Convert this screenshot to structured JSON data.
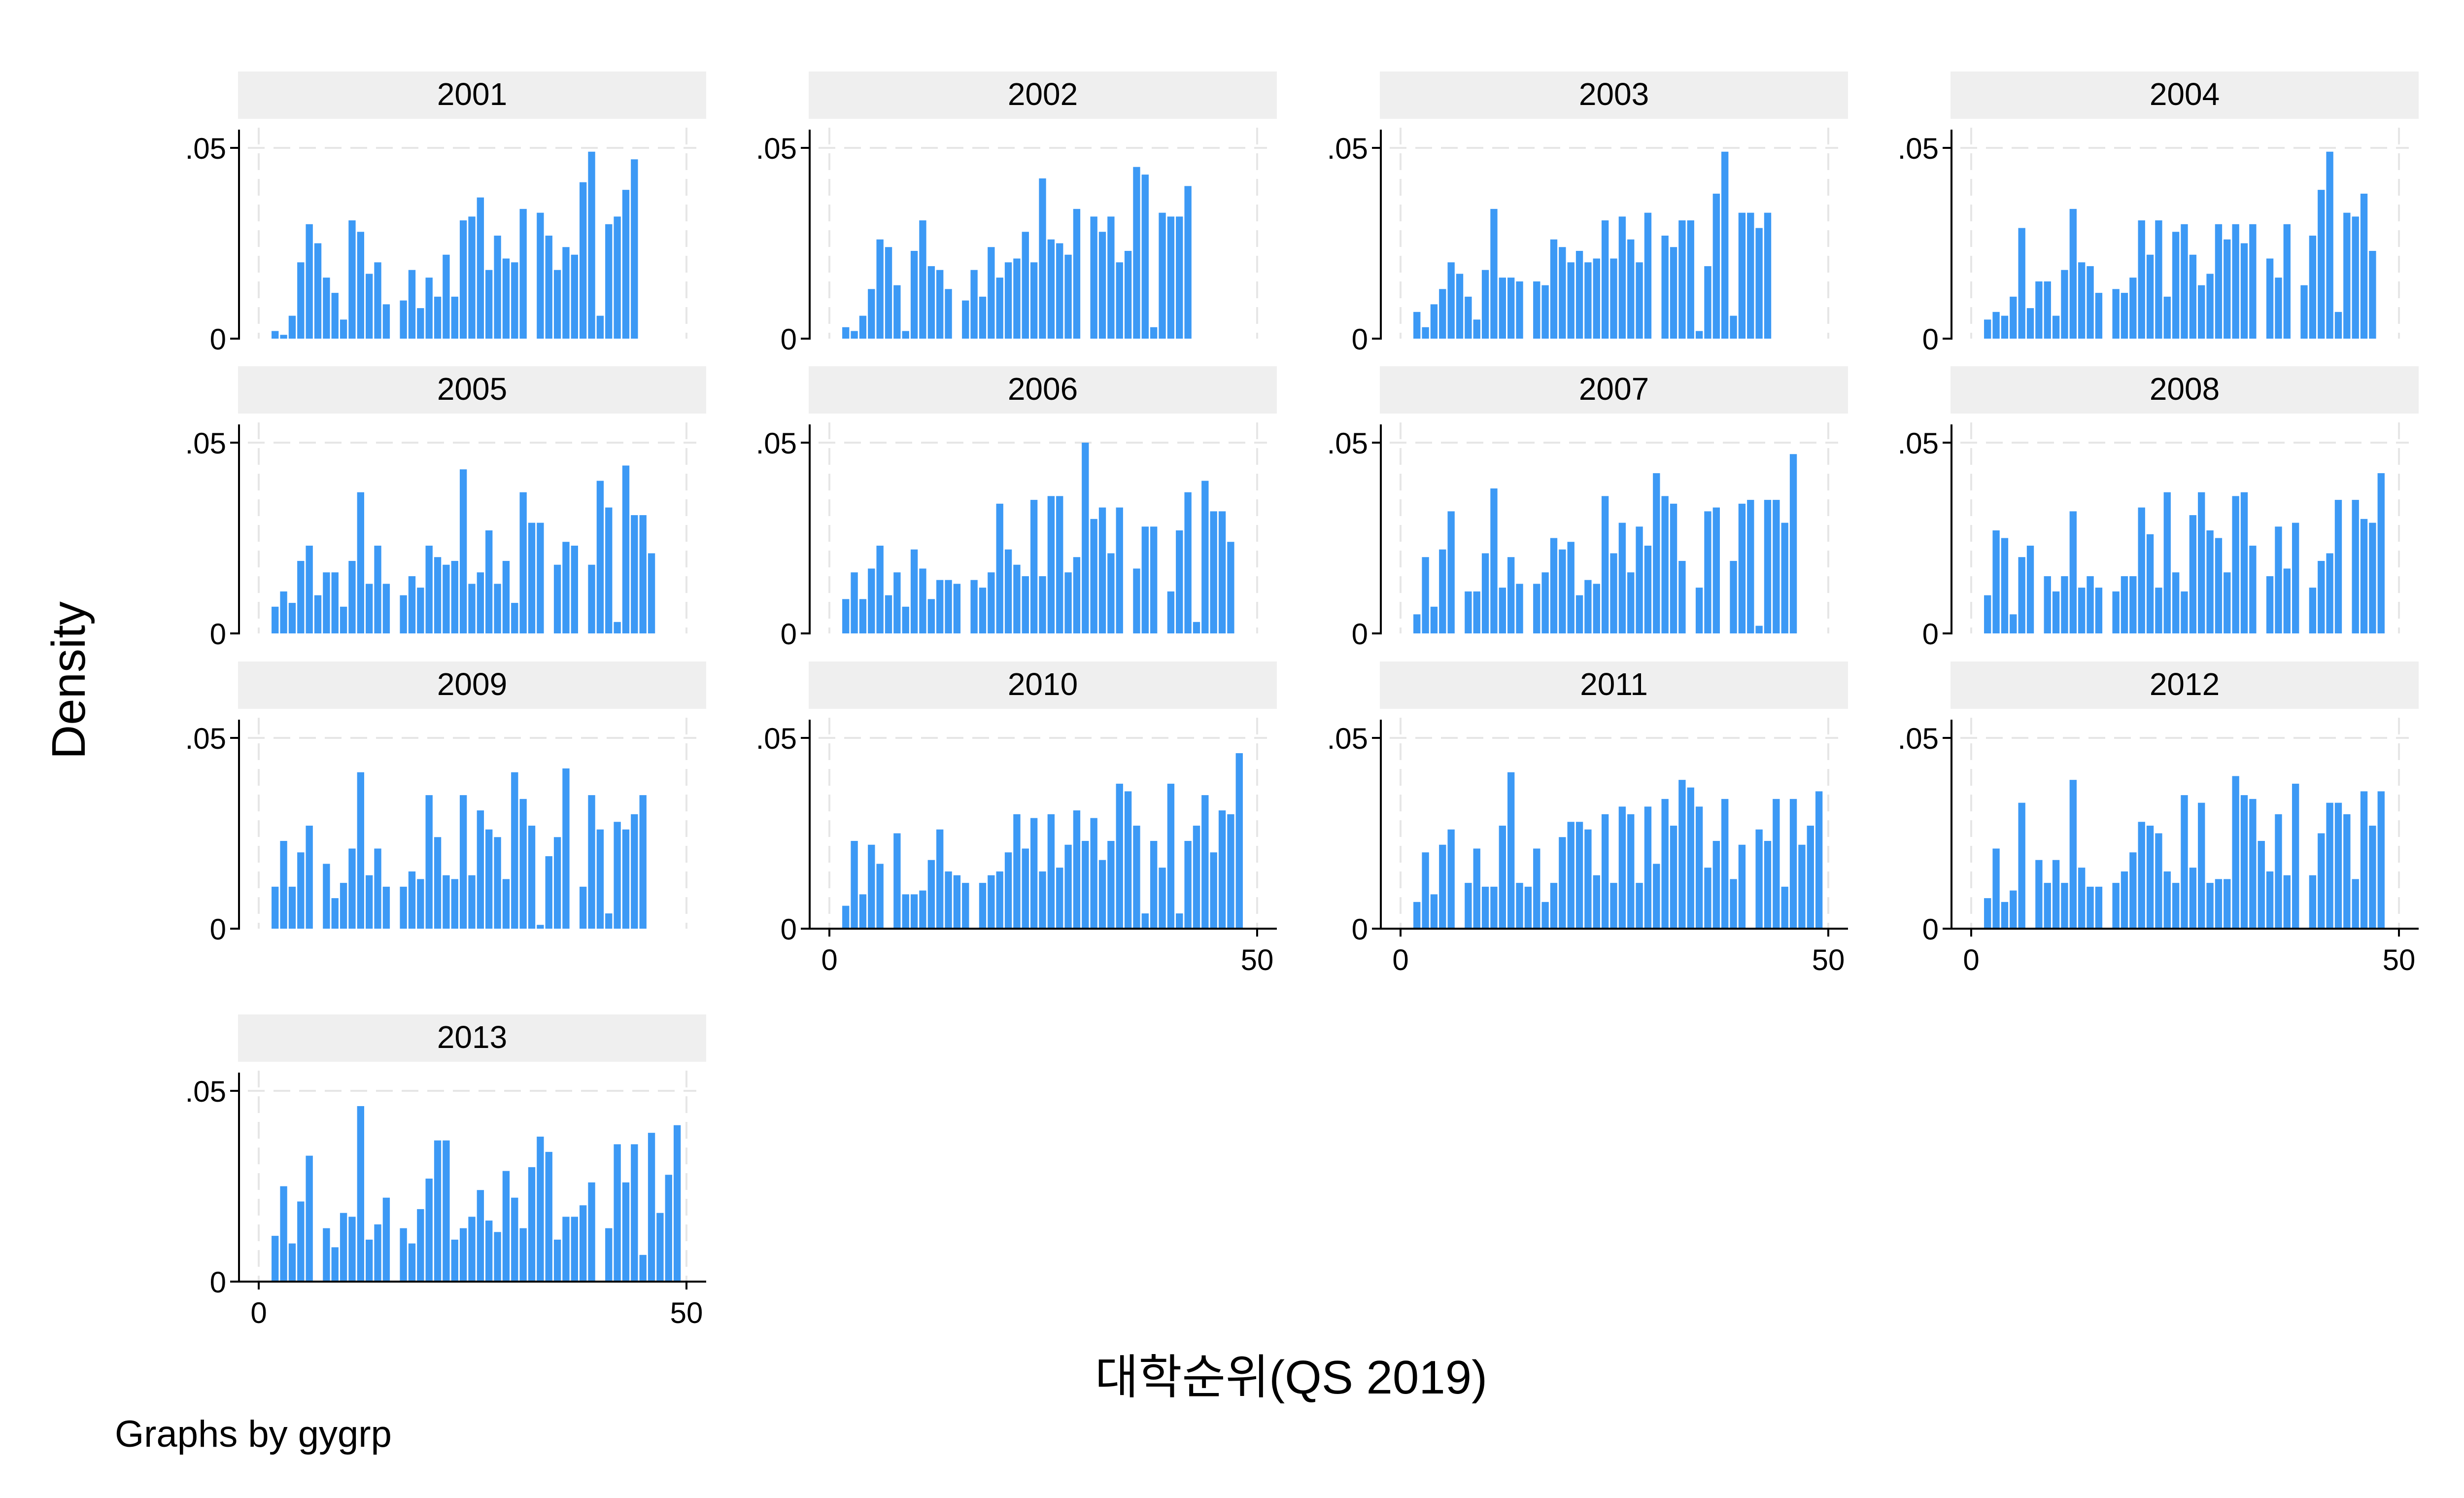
{
  "chart_data": {
    "type": "bar",
    "subtype": "histogram-small-multiples",
    "ylabel": "Density",
    "xlabel": "대학순위(QS 2019)",
    "note": "Graphs by gygrp",
    "xlim": [
      0,
      50
    ],
    "ylim": [
      0,
      0.05
    ],
    "x_ticks": [
      0,
      50
    ],
    "y_ticks": [
      {
        "value": 0,
        "label": "0"
      },
      {
        "value": 0.05,
        "label": ".05"
      }
    ],
    "bar_color": "#3c99f5",
    "strip_color": "#efefef",
    "grid": true,
    "bin_centers": [
      2,
      3,
      4,
      5,
      6,
      7,
      8,
      9,
      10,
      11,
      12,
      13,
      14,
      15,
      16,
      17,
      18,
      19,
      20,
      21,
      22,
      23,
      24,
      25,
      26,
      27,
      28,
      29,
      30,
      31,
      32,
      33,
      34,
      35,
      36,
      37,
      38,
      39,
      40,
      41,
      42,
      43,
      44,
      45,
      46,
      47,
      48,
      49,
      50
    ],
    "panels": [
      {
        "label": "2001",
        "values": [
          0.002,
          0.001,
          0.006,
          0.02,
          0.03,
          0.025,
          0.016,
          0.012,
          0.005,
          0.031,
          0.028,
          0.017,
          0.02,
          0.009,
          0,
          0.01,
          0.018,
          0.008,
          0.016,
          0.011,
          0.022,
          0.011,
          0.031,
          0.032,
          0.037,
          0.018,
          0.027,
          0.021,
          0.02,
          0.034,
          0,
          0.033,
          0.027,
          0.018,
          0.024,
          0.022,
          0.041,
          0.049,
          0.006,
          0.03,
          0.032,
          0.039,
          0.047,
          0,
          0,
          0,
          0,
          0,
          0
        ]
      },
      {
        "label": "2002",
        "values": [
          0.003,
          0.002,
          0.006,
          0.013,
          0.026,
          0.024,
          0.014,
          0.002,
          0.023,
          0.031,
          0.019,
          0.018,
          0.013,
          0,
          0.01,
          0.018,
          0.011,
          0.024,
          0.016,
          0.02,
          0.021,
          0.028,
          0.02,
          0.042,
          0.026,
          0.025,
          0.022,
          0.034,
          0,
          0.032,
          0.028,
          0.032,
          0.02,
          0.023,
          0.045,
          0.043,
          0.003,
          0.033,
          0.032,
          0.032,
          0.04,
          0,
          0,
          0,
          0,
          0,
          0,
          0,
          0
        ]
      },
      {
        "label": "2003",
        "values": [
          0.007,
          0.003,
          0.009,
          0.013,
          0.02,
          0.017,
          0.011,
          0.005,
          0.018,
          0.034,
          0.016,
          0.016,
          0.015,
          0,
          0.015,
          0.014,
          0.026,
          0.024,
          0.02,
          0.023,
          0.02,
          0.021,
          0.031,
          0.021,
          0.032,
          0.026,
          0.02,
          0.033,
          0,
          0.027,
          0.024,
          0.031,
          0.031,
          0.002,
          0.019,
          0.038,
          0.049,
          0.006,
          0.033,
          0.033,
          0.029,
          0.033,
          0,
          0,
          0,
          0,
          0,
          0,
          0
        ]
      },
      {
        "label": "2004",
        "values": [
          0.005,
          0.007,
          0.006,
          0.011,
          0.029,
          0.008,
          0.015,
          0.015,
          0.006,
          0.018,
          0.034,
          0.02,
          0.019,
          0.012,
          0,
          0.013,
          0.012,
          0.016,
          0.031,
          0.022,
          0.031,
          0.011,
          0.028,
          0.03,
          0.022,
          0.014,
          0.017,
          0.03,
          0.026,
          0.03,
          0.025,
          0.03,
          0,
          0.021,
          0.016,
          0.03,
          0,
          0.014,
          0.027,
          0.039,
          0.049,
          0.007,
          0.033,
          0.032,
          0.038,
          0.023,
          0,
          0,
          0
        ]
      },
      {
        "label": "2005",
        "values": [
          0.007,
          0.011,
          0.008,
          0.019,
          0.023,
          0.01,
          0.016,
          0.016,
          0.007,
          0.019,
          0.037,
          0.013,
          0.023,
          0.013,
          0,
          0.01,
          0.015,
          0.012,
          0.023,
          0.02,
          0.018,
          0.019,
          0.043,
          0.013,
          0.016,
          0.027,
          0.013,
          0.019,
          0.008,
          0.037,
          0.029,
          0.029,
          0,
          0.018,
          0.024,
          0.023,
          0,
          0.018,
          0.04,
          0.033,
          0.003,
          0.044,
          0.031,
          0.031,
          0.021,
          0,
          0,
          0,
          0
        ]
      },
      {
        "label": "2006",
        "values": [
          0.009,
          0.016,
          0.009,
          0.017,
          0.023,
          0.01,
          0.016,
          0.007,
          0.022,
          0.017,
          0.009,
          0.014,
          0.014,
          0.013,
          0,
          0.014,
          0.012,
          0.016,
          0.034,
          0.022,
          0.018,
          0.015,
          0.035,
          0.015,
          0.036,
          0.036,
          0.016,
          0.02,
          0.05,
          0.03,
          0.033,
          0.021,
          0.033,
          0,
          0.017,
          0.028,
          0.028,
          0,
          0.011,
          0.027,
          0.037,
          0.003,
          0.04,
          0.032,
          0.032,
          0.024,
          0,
          0,
          0
        ]
      },
      {
        "label": "2007",
        "values": [
          0.005,
          0.02,
          0.007,
          0.022,
          0.032,
          0,
          0.011,
          0.011,
          0.021,
          0.038,
          0.012,
          0.02,
          0.013,
          0,
          0.013,
          0.016,
          0.025,
          0.022,
          0.024,
          0.01,
          0.014,
          0.013,
          0.036,
          0.021,
          0.029,
          0.016,
          0.028,
          0.023,
          0.042,
          0.036,
          0.034,
          0.019,
          0,
          0.012,
          0.032,
          0.033,
          0,
          0.019,
          0.034,
          0.035,
          0.002,
          0.035,
          0.035,
          0.029,
          0.047,
          0,
          0,
          0,
          0
        ]
      },
      {
        "label": "2008",
        "values": [
          0.01,
          0.027,
          0.025,
          0.005,
          0.02,
          0.023,
          0,
          0.015,
          0.011,
          0.015,
          0.032,
          0.012,
          0.015,
          0.012,
          0,
          0.011,
          0.015,
          0.015,
          0.033,
          0.026,
          0.012,
          0.037,
          0.016,
          0.011,
          0.031,
          0.037,
          0.027,
          0.025,
          0.016,
          0.036,
          0.037,
          0.023,
          0,
          0.015,
          0.028,
          0.017,
          0.029,
          0,
          0.012,
          0.019,
          0.021,
          0.035,
          0,
          0.035,
          0.03,
          0.029,
          0.042,
          0,
          0
        ]
      },
      {
        "label": "2009",
        "values": [
          0.011,
          0.023,
          0.011,
          0.02,
          0.027,
          0,
          0.017,
          0.008,
          0.012,
          0.021,
          0.041,
          0.014,
          0.021,
          0.011,
          0,
          0.011,
          0.015,
          0.013,
          0.035,
          0.024,
          0.014,
          0.013,
          0.035,
          0.014,
          0.031,
          0.026,
          0.024,
          0.013,
          0.041,
          0.034,
          0.027,
          0.001,
          0.019,
          0.024,
          0.042,
          0,
          0.011,
          0.035,
          0.026,
          0.004,
          0.028,
          0.026,
          0.03,
          0.035,
          0,
          0,
          0,
          0,
          0
        ]
      },
      {
        "label": "2010",
        "values": [
          0.006,
          0.023,
          0.009,
          0.022,
          0.017,
          0,
          0.025,
          0.009,
          0.009,
          0.01,
          0.018,
          0.026,
          0.015,
          0.014,
          0.012,
          0,
          0.012,
          0.014,
          0.015,
          0.02,
          0.03,
          0.021,
          0.029,
          0.015,
          0.03,
          0.016,
          0.022,
          0.031,
          0.023,
          0.029,
          0.018,
          0.023,
          0.038,
          0.036,
          0.027,
          0.004,
          0.023,
          0.016,
          0.038,
          0.004,
          0.023,
          0.027,
          0.035,
          0.02,
          0.031,
          0.03,
          0.046,
          0,
          0
        ]
      },
      {
        "label": "2011",
        "values": [
          0.007,
          0.02,
          0.009,
          0.022,
          0.026,
          0,
          0.012,
          0.021,
          0.011,
          0.011,
          0.027,
          0.041,
          0.012,
          0.011,
          0.021,
          0.007,
          0.012,
          0.024,
          0.028,
          0.028,
          0.026,
          0.014,
          0.03,
          0.012,
          0.032,
          0.03,
          0.012,
          0.032,
          0.017,
          0.034,
          0.027,
          0.039,
          0.037,
          0.032,
          0.016,
          0.023,
          0.034,
          0.013,
          0.022,
          0,
          0.026,
          0.023,
          0.034,
          0.011,
          0.034,
          0.022,
          0.027,
          0.036,
          0
        ]
      },
      {
        "label": "2012",
        "values": [
          0.008,
          0.021,
          0.007,
          0.01,
          0.033,
          0,
          0.018,
          0.012,
          0.018,
          0.012,
          0.039,
          0.016,
          0.011,
          0.011,
          0,
          0.012,
          0.015,
          0.02,
          0.028,
          0.027,
          0.025,
          0.015,
          0.012,
          0.035,
          0.016,
          0.033,
          0.012,
          0.013,
          0.013,
          0.04,
          0.035,
          0.034,
          0.023,
          0.015,
          0.03,
          0.014,
          0.038,
          0,
          0.014,
          0.025,
          0.033,
          0.033,
          0.03,
          0.013,
          0.036,
          0.027,
          0.036,
          0,
          0
        ]
      },
      {
        "label": "2013",
        "values": [
          0.012,
          0.025,
          0.01,
          0.021,
          0.033,
          0,
          0.014,
          0.009,
          0.018,
          0.017,
          0.046,
          0.011,
          0.015,
          0.022,
          0,
          0.014,
          0.01,
          0.019,
          0.027,
          0.037,
          0.037,
          0.011,
          0.014,
          0.017,
          0.024,
          0.016,
          0.013,
          0.029,
          0.022,
          0.014,
          0.03,
          0.038,
          0.034,
          0.011,
          0.017,
          0.017,
          0.02,
          0.026,
          0,
          0.014,
          0.036,
          0.026,
          0.036,
          0.007,
          0.039,
          0.018,
          0.028,
          0.041,
          0
        ]
      }
    ]
  }
}
